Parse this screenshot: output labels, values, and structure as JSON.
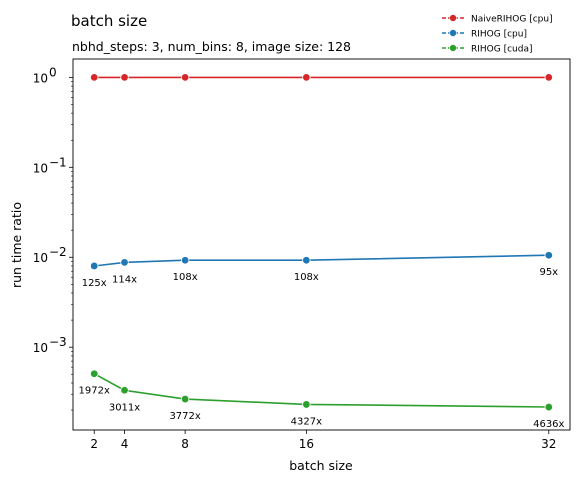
{
  "chart_data": {
    "type": "line",
    "title": "batch size",
    "subtitle": "nbhd_steps: 3, num_bins: 8, image size: 128",
    "xlabel": "batch size",
    "ylabel": "run time ratio",
    "yscale": "log",
    "ylim": [
      0.00012,
      1.6
    ],
    "xlim": [
      0.6,
      33.4
    ],
    "x": [
      2,
      4,
      8,
      16,
      32
    ],
    "x_ticks": [
      "2",
      "4",
      "8",
      "16",
      "32"
    ],
    "y_ticks": [
      {
        "value": 1,
        "base": "10",
        "exp": "0"
      },
      {
        "value": 0.1,
        "base": "10",
        "exp": "−1"
      },
      {
        "value": 0.01,
        "base": "10",
        "exp": "−2"
      },
      {
        "value": 0.001,
        "base": "10",
        "exp": "−3"
      }
    ],
    "series": [
      {
        "name": "NaiveRIHOG [cpu]",
        "color": "#d62728",
        "values": [
          1.0,
          1.0,
          1.0,
          1.0,
          1.0
        ],
        "annotations": []
      },
      {
        "name": "RIHOG [cpu]",
        "color": "#1f77b4",
        "values": [
          0.008,
          0.00877,
          0.00926,
          0.00926,
          0.01053
        ],
        "annotations": [
          "125x",
          "114x",
          "108x",
          "108x",
          "95x"
        ]
      },
      {
        "name": "RIHOG [cuda]",
        "color": "#2ca02c",
        "values": [
          0.000507,
          0.000332,
          0.000265,
          0.000231,
          0.000216
        ],
        "annotations": [
          "1972x",
          "3011x",
          "3772x",
          "4327x",
          "4636x"
        ]
      }
    ],
    "legend_position": "top-right"
  }
}
